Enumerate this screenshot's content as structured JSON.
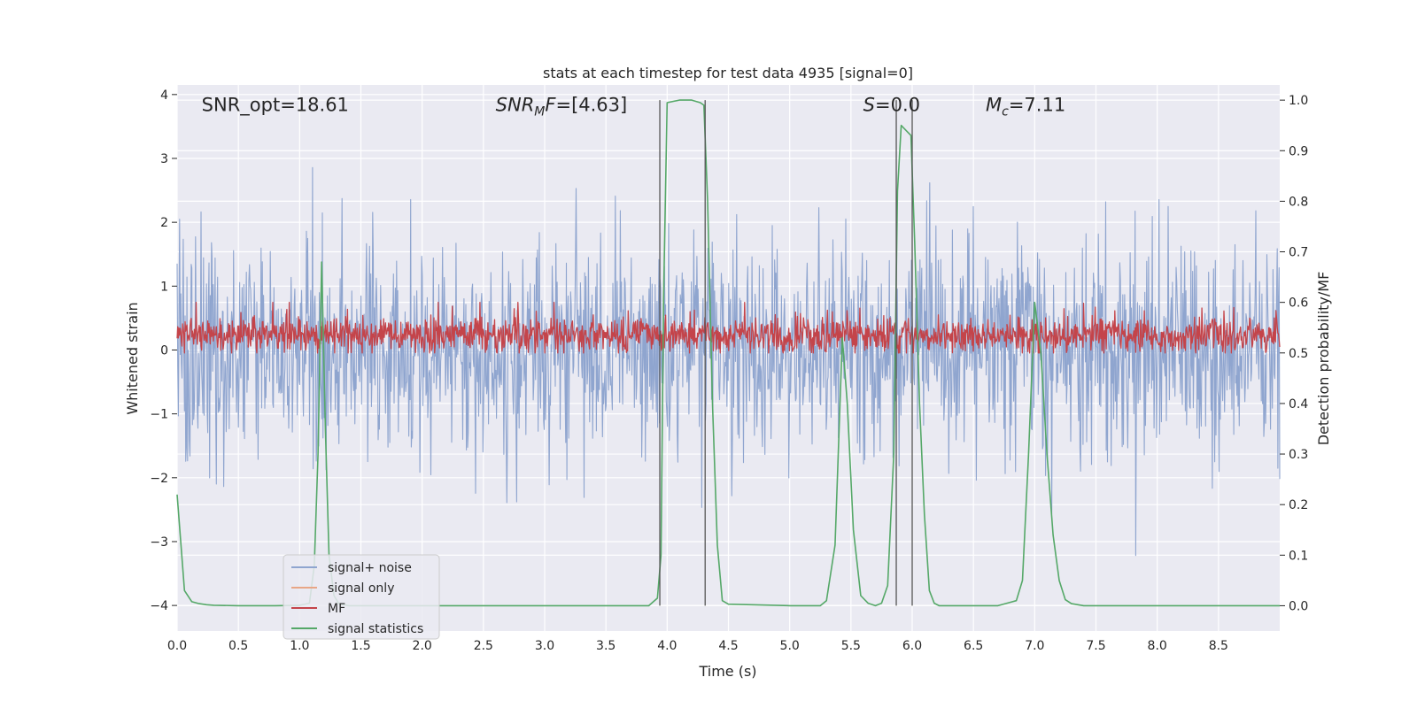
{
  "chart_data": {
    "type": "line",
    "title": "stats at each timestep for test data 4935 [signal=0]",
    "xlabel": "Time (s)",
    "ylabel_left": "Whitened strain",
    "ylabel_right": "Detection probability/MF",
    "xlim": [
      0.0,
      9.0
    ],
    "ylim_left": [
      -4.4,
      4.15
    ],
    "ylim_right": [
      -0.05,
      1.03
    ],
    "grid": true,
    "legend_position": "lower-left",
    "x_ticks": [
      0.0,
      0.5,
      1.0,
      1.5,
      2.0,
      2.5,
      3.0,
      3.5,
      4.0,
      4.5,
      5.0,
      5.5,
      6.0,
      6.5,
      7.0,
      7.5,
      8.0,
      8.5
    ],
    "x_tick_labels": [
      "0.0",
      "0.5",
      "1.0",
      "1.5",
      "2.0",
      "2.5",
      "3.0",
      "3.5",
      "4.0",
      "4.5",
      "5.0",
      "5.5",
      "6.0",
      "6.5",
      "7.0",
      "7.5",
      "8.0",
      "8.5"
    ],
    "y_left_ticks": [
      -4,
      -3,
      -2,
      -1,
      0,
      1,
      2,
      3,
      4
    ],
    "y_left_tick_labels": [
      "−4",
      "−3",
      "−2",
      "−1",
      "0",
      "1",
      "2",
      "3",
      "4"
    ],
    "y_right_ticks": [
      0.0,
      0.1,
      0.2,
      0.3,
      0.4,
      0.5,
      0.6,
      0.7,
      0.8,
      0.9,
      1.0
    ],
    "y_right_tick_labels": [
      "0.0",
      "0.1",
      "0.2",
      "0.3",
      "0.4",
      "0.5",
      "0.6",
      "0.7",
      "0.8",
      "0.9",
      "1.0"
    ],
    "annotations": [
      {
        "name": "snr-opt-annotation",
        "prefix": "SNR_opt=",
        "value": "18.61",
        "x": 0.2,
        "y": 3.85
      },
      {
        "name": "snr-mf-annotation",
        "prefix": "SNR",
        "subscript": "M",
        "suffix": "F=",
        "value": "[4.63]",
        "x": 2.6,
        "y": 3.85
      },
      {
        "name": "s-annotation",
        "prefix": "S",
        "suffix": "=",
        "value": "0.0",
        "x": 5.6,
        "y": 3.85
      },
      {
        "name": "mc-annotation",
        "prefix": "M",
        "subscript": "c",
        "suffix": "=",
        "value": "7.11",
        "x": 6.6,
        "y": 3.85
      }
    ],
    "vertical_markers": [
      {
        "x": 3.94,
        "y_range": [
          0.0,
          1.0
        ]
      },
      {
        "x": 4.31,
        "y_range": [
          0.0,
          1.0
        ]
      },
      {
        "x": 5.87,
        "y_range": [
          0.0,
          1.0
        ]
      },
      {
        "x": 6.0,
        "y_range": [
          0.0,
          1.0
        ]
      }
    ],
    "series": [
      {
        "name": "signal+ noise",
        "axis": "left",
        "color": "#8fa5cf",
        "kind": "noise",
        "samples": 1800,
        "spread": 0.85,
        "range": [
          -3.7,
          3.65
        ]
      },
      {
        "name": "signal only",
        "axis": "left",
        "color": "#e8a686",
        "kind": "zero",
        "values": [
          0,
          0
        ]
      },
      {
        "name": "MF",
        "axis": "right",
        "color": "#c4444a",
        "kind": "noise",
        "samples": 1800,
        "center": 0.535,
        "spread": 0.018,
        "range": [
          0.5,
          0.6
        ]
      },
      {
        "name": "signal statistics",
        "axis": "right",
        "color": "#55a868",
        "kind": "line",
        "x": [
          0.0,
          0.06,
          0.12,
          0.18,
          0.24,
          0.3,
          0.5,
          0.8,
          1.0,
          1.08,
          1.12,
          1.15,
          1.18,
          1.21,
          1.24,
          1.28,
          1.32,
          1.4,
          2.0,
          3.0,
          3.85,
          3.92,
          3.95,
          3.97,
          4.0,
          4.1,
          4.2,
          4.27,
          4.3,
          4.33,
          4.37,
          4.41,
          4.45,
          4.5,
          5.0,
          5.25,
          5.3,
          5.37,
          5.43,
          5.47,
          5.52,
          5.58,
          5.64,
          5.7,
          5.75,
          5.8,
          5.85,
          5.88,
          5.91,
          5.95,
          5.99,
          6.02,
          6.06,
          6.1,
          6.14,
          6.18,
          6.22,
          6.3,
          6.7,
          6.85,
          6.9,
          6.95,
          7.0,
          7.05,
          7.1,
          7.15,
          7.2,
          7.25,
          7.3,
          7.4,
          9.0
        ],
        "y": [
          0.22,
          0.03,
          0.008,
          0.004,
          0.002,
          0.001,
          0.0,
          0.0,
          0.001,
          0.005,
          0.08,
          0.3,
          0.68,
          0.35,
          0.1,
          0.02,
          0.004,
          0.0,
          0.0,
          0.0,
          0.0,
          0.015,
          0.1,
          0.6,
          0.995,
          1.0,
          1.0,
          0.995,
          0.99,
          0.8,
          0.4,
          0.12,
          0.01,
          0.003,
          0.0,
          0.0,
          0.01,
          0.12,
          0.53,
          0.4,
          0.15,
          0.02,
          0.005,
          0.0,
          0.005,
          0.04,
          0.3,
          0.82,
          0.95,
          0.94,
          0.93,
          0.72,
          0.4,
          0.18,
          0.03,
          0.005,
          0.0,
          0.0,
          0.0,
          0.01,
          0.05,
          0.3,
          0.6,
          0.5,
          0.3,
          0.14,
          0.05,
          0.012,
          0.004,
          0.0,
          0.0
        ]
      }
    ]
  }
}
